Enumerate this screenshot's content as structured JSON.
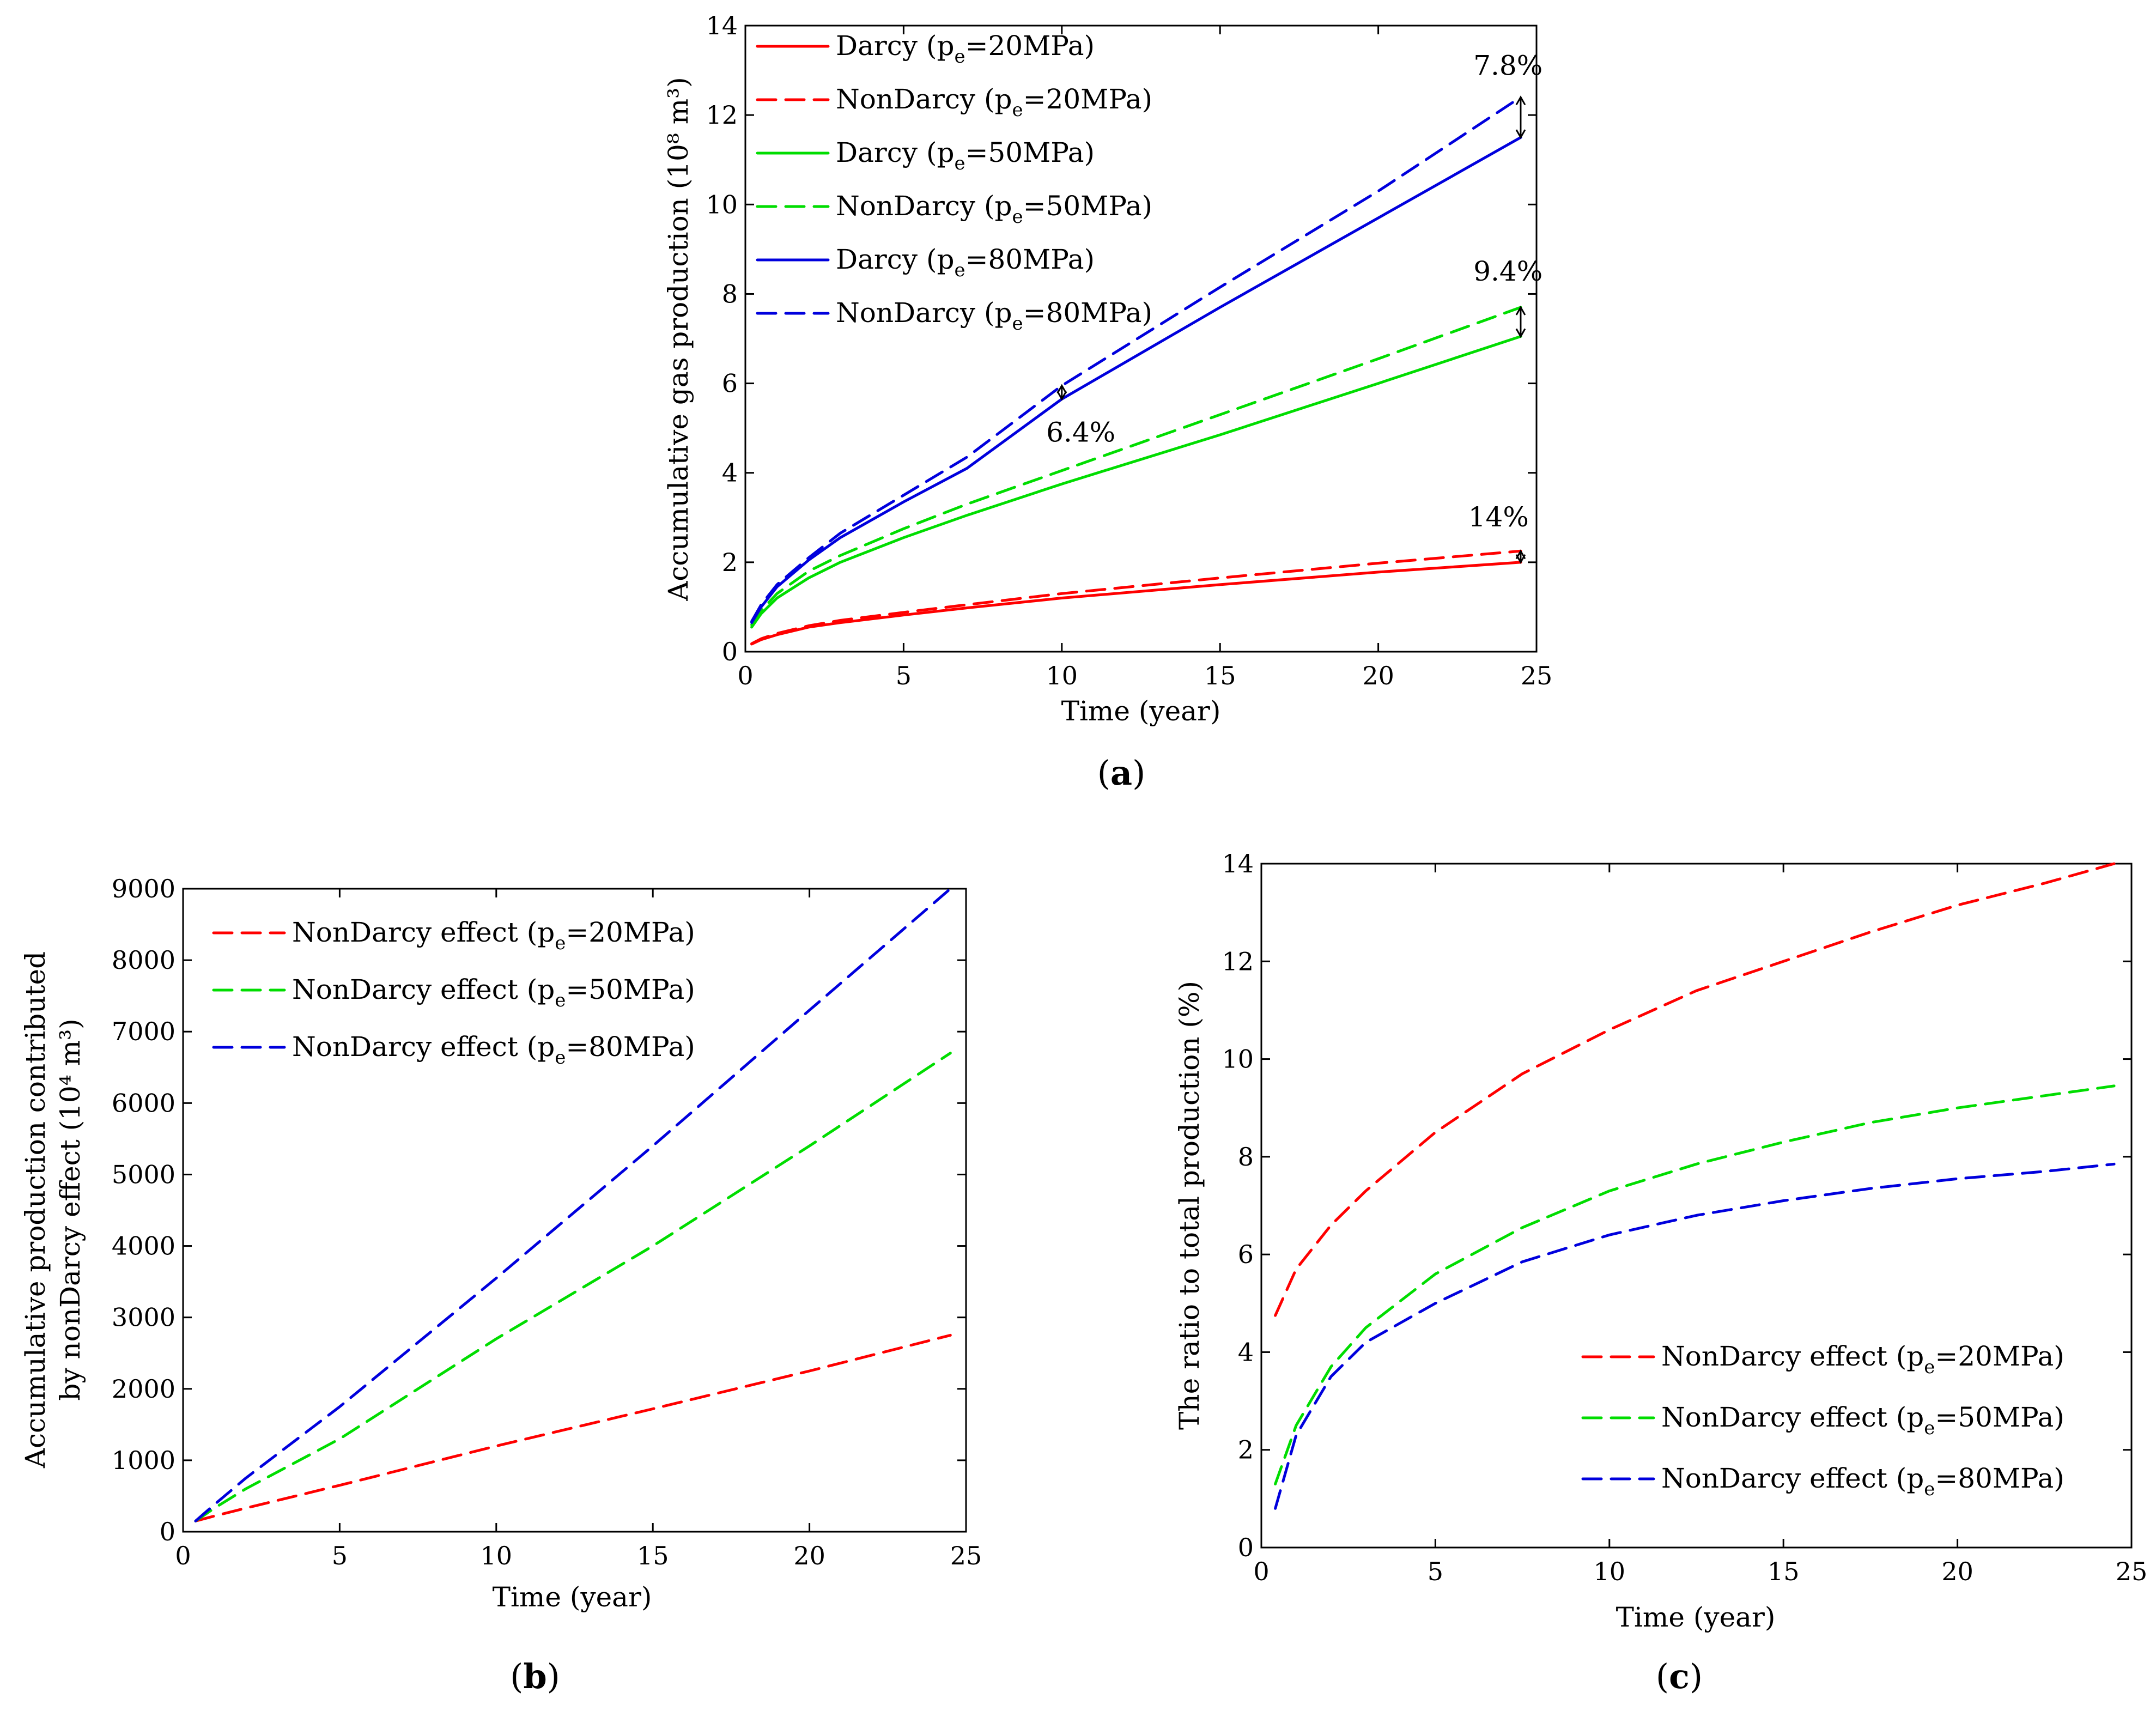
{
  "chart_data": [
    {
      "id": "a",
      "type": "line",
      "panel_label": "a",
      "xlabel": "Time (year)",
      "ylabel": "Accumulative gas production (10⁸ m³)",
      "xlim": [
        0,
        25
      ],
      "ylim": [
        0,
        14
      ],
      "xticks": [
        "0",
        "5",
        "10",
        "15",
        "20",
        "25"
      ],
      "yticks": [
        "0",
        "2",
        "4",
        "6",
        "8",
        "10",
        "12",
        "14"
      ],
      "legend_position": "top-left",
      "series": [
        {
          "name": "Darcy (pe=20MPa)",
          "base": "Darcy (p",
          "sub": "e",
          "tail": "=20MPa)",
          "color": "#ff0000",
          "dash": false,
          "x": [
            0.2,
            0.5,
            1,
            2,
            3,
            5,
            7,
            10,
            15,
            20,
            24.5
          ],
          "y": [
            0.17,
            0.27,
            0.38,
            0.55,
            0.65,
            0.82,
            0.98,
            1.2,
            1.5,
            1.78,
            2.0
          ]
        },
        {
          "name": "NonDarcy (pe=20MPa)",
          "base": "NonDarcy (p",
          "sub": "e",
          "tail": "=20MPa)",
          "color": "#ff0000",
          "dash": true,
          "x": [
            0.2,
            0.5,
            1,
            2,
            3,
            5,
            7,
            10,
            15,
            20,
            24.5
          ],
          "y": [
            0.18,
            0.29,
            0.41,
            0.58,
            0.7,
            0.88,
            1.05,
            1.3,
            1.65,
            1.98,
            2.25
          ]
        },
        {
          "name": "Darcy (pe=50MPa)",
          "base": "Darcy (p",
          "sub": "e",
          "tail": "=50MPa)",
          "color": "#00dd00",
          "dash": false,
          "x": [
            0.2,
            0.5,
            1,
            2,
            3,
            5,
            7,
            10,
            15,
            20,
            24.5
          ],
          "y": [
            0.55,
            0.85,
            1.2,
            1.65,
            2.0,
            2.55,
            3.05,
            3.75,
            4.85,
            6.0,
            7.05
          ]
        },
        {
          "name": "NonDarcy (pe=50MPa)",
          "base": "NonDarcy (p",
          "sub": "e",
          "tail": "=50MPa)",
          "color": "#00dd00",
          "dash": true,
          "x": [
            0.2,
            0.5,
            1,
            2,
            3,
            5,
            7,
            10,
            15,
            20,
            24.5
          ],
          "y": [
            0.6,
            0.92,
            1.3,
            1.8,
            2.15,
            2.75,
            3.3,
            4.05,
            5.3,
            6.55,
            7.7
          ]
        },
        {
          "name": "Darcy (pe=80MPa)",
          "base": "Darcy (p",
          "sub": "e",
          "tail": "=80MPa)",
          "color": "#0000dd",
          "dash": false,
          "x": [
            0.2,
            0.5,
            1,
            2,
            3,
            5,
            7,
            10,
            15,
            20,
            24.5
          ],
          "y": [
            0.65,
            1.0,
            1.45,
            2.05,
            2.55,
            3.35,
            4.1,
            5.65,
            7.7,
            9.7,
            11.5
          ]
        },
        {
          "name": "NonDarcy (pe=80MPa)",
          "base": "NonDarcy (p",
          "sub": "e",
          "tail": "=80MPa)",
          "color": "#0000dd",
          "dash": true,
          "x": [
            0.2,
            0.5,
            1,
            2,
            3,
            5,
            7,
            10,
            15,
            20,
            24.5
          ],
          "y": [
            0.68,
            1.05,
            1.5,
            2.1,
            2.65,
            3.5,
            4.35,
            5.95,
            8.15,
            10.3,
            12.4
          ]
        }
      ],
      "annotations": [
        {
          "text": "7.8%",
          "x": 24.1,
          "y": 12.9,
          "arrow_x": 24.5,
          "arrow_y": [
            11.5,
            12.4
          ]
        },
        {
          "text": "9.4%",
          "x": 24.1,
          "y": 8.3,
          "arrow_x": 24.5,
          "arrow_y": [
            7.05,
            7.7
          ]
        },
        {
          "text": "6.4%",
          "x": 10.6,
          "y": 4.7,
          "arrow_x": 10.0,
          "arrow_y": [
            5.65,
            5.95
          ]
        },
        {
          "text": "14%",
          "x": 23.8,
          "y": 2.8,
          "arrow_x": 24.5,
          "arrow_y": [
            2.0,
            2.25
          ]
        }
      ]
    },
    {
      "id": "b",
      "type": "line",
      "panel_label": "b",
      "xlabel": "Time (year)",
      "ylabel_line1": "Accumulative production contributed",
      "ylabel_line2": "by nonDarcy effect (10⁴ m³)",
      "xlim": [
        0,
        25
      ],
      "ylim": [
        0,
        9000
      ],
      "xticks": [
        "0",
        "5",
        "10",
        "15",
        "20",
        "25"
      ],
      "yticks": [
        "0",
        "1000",
        "2000",
        "3000",
        "4000",
        "5000",
        "6000",
        "7000",
        "8000",
        "9000"
      ],
      "legend_position": "top-left",
      "series": [
        {
          "name": "NonDarcy effect (pe=20MPa)",
          "base": "NonDarcy effect (p",
          "sub": "e",
          "tail": "=20MPa)",
          "color": "#ff0000",
          "dash": true,
          "x": [
            0.4,
            1,
            2,
            5,
            10,
            15,
            20,
            24.5
          ],
          "y": [
            150,
            220,
            330,
            650,
            1200,
            1720,
            2250,
            2750
          ]
        },
        {
          "name": "NonDarcy effect (pe=50MPa)",
          "base": "NonDarcy effect (p",
          "sub": "e",
          "tail": "=50MPa)",
          "color": "#00dd00",
          "dash": true,
          "x": [
            0.4,
            1,
            2,
            5,
            10,
            15,
            20,
            24.5
          ],
          "y": [
            150,
            330,
            600,
            1300,
            2700,
            4000,
            5400,
            6700
          ]
        },
        {
          "name": "NonDarcy effect (pe=80MPa)",
          "base": "NonDarcy effect (p",
          "sub": "e",
          "tail": "=80MPa)",
          "color": "#0000dd",
          "dash": true,
          "x": [
            0.4,
            1,
            2,
            5,
            10,
            15,
            20,
            24.5
          ],
          "y": [
            150,
            380,
            750,
            1750,
            3550,
            5400,
            7300,
            9000
          ]
        }
      ]
    },
    {
      "id": "c",
      "type": "line",
      "panel_label": "c",
      "xlabel": "Time (year)",
      "ylabel": "The ratio to total production (%)",
      "xlim": [
        0,
        25
      ],
      "ylim": [
        0,
        14
      ],
      "xticks": [
        "0",
        "5",
        "10",
        "15",
        "20",
        "25"
      ],
      "yticks": [
        "0",
        "2",
        "4",
        "6",
        "8",
        "10",
        "12",
        "14"
      ],
      "legend_position": "bottom-right",
      "series": [
        {
          "name": "NonDarcy effect (pe=20MPa)",
          "base": "NonDarcy effect (p",
          "sub": "e",
          "tail": "=20MPa)",
          "color": "#ff0000",
          "dash": true,
          "x": [
            0.4,
            1,
            2,
            3,
            5,
            7.5,
            10,
            12.5,
            15,
            17.5,
            20,
            22.5,
            24.5
          ],
          "y": [
            4.75,
            5.7,
            6.6,
            7.3,
            8.5,
            9.7,
            10.6,
            11.4,
            12.0,
            12.6,
            13.15,
            13.6,
            14.0
          ]
        },
        {
          "name": "NonDarcy effect (pe=50MPa)",
          "base": "NonDarcy effect (p",
          "sub": "e",
          "tail": "=50MPa)",
          "color": "#00dd00",
          "dash": true,
          "x": [
            0.4,
            1,
            2,
            3,
            5,
            7.5,
            10,
            12.5,
            15,
            17.5,
            20,
            22.5,
            24.5
          ],
          "y": [
            1.3,
            2.5,
            3.7,
            4.5,
            5.6,
            6.55,
            7.3,
            7.85,
            8.3,
            8.7,
            9.0,
            9.25,
            9.45
          ]
        },
        {
          "name": "NonDarcy effect (pe=80MPa)",
          "base": "NonDarcy effect (p",
          "sub": "e",
          "tail": "=80MPa)",
          "color": "#0000dd",
          "dash": true,
          "x": [
            0.4,
            1,
            2,
            3,
            5,
            7.5,
            10,
            12.5,
            15,
            17.5,
            20,
            22.5,
            24.5
          ],
          "y": [
            0.8,
            2.3,
            3.5,
            4.2,
            5.0,
            5.85,
            6.4,
            6.8,
            7.1,
            7.35,
            7.55,
            7.7,
            7.85
          ]
        }
      ]
    }
  ]
}
